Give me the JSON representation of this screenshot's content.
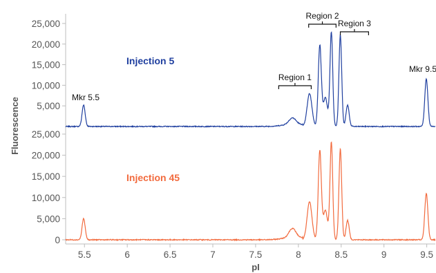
{
  "chart_data": {
    "type": "line",
    "xlabel": "pI",
    "ylabel": "Fluorescence",
    "xlim": [
      5.28,
      9.6
    ],
    "x_ticks": [
      "5.5",
      "6",
      "6.5",
      "7",
      "7.5",
      "8",
      "8.5",
      "9",
      "9.5"
    ],
    "y_ticks": [
      "0",
      "5,000",
      "10,000",
      "15,000",
      "20,000",
      "25,000"
    ],
    "panels": [
      {
        "name": "Injection 5",
        "color": "#1f3f9f",
        "ylim": [
          0,
          26500
        ],
        "baseline": 0,
        "y_tick_values": [
          5000,
          10000,
          15000,
          20000,
          25000
        ],
        "y_tick_labels": [
          "5,000",
          "10,000",
          "15,000",
          "20,000",
          "25,000"
        ],
        "peaks": [
          {
            "x": 5.49,
            "height": 5200,
            "width": 0.018
          },
          {
            "x": 7.93,
            "height": 1500,
            "width": 0.04
          },
          {
            "x": 8.13,
            "height": 8000,
            "width": 0.028
          },
          {
            "x": 8.25,
            "height": 19600,
            "width": 0.018
          },
          {
            "x": 8.315,
            "height": 7000,
            "width": 0.025
          },
          {
            "x": 8.385,
            "height": 22900,
            "width": 0.016
          },
          {
            "x": 8.49,
            "height": 22300,
            "width": 0.016
          },
          {
            "x": 8.575,
            "height": 5200,
            "width": 0.018
          },
          {
            "x": 9.495,
            "height": 11600,
            "width": 0.018
          }
        ],
        "annotations": [
          {
            "text": "Mkr 5.5",
            "x": 5.49
          },
          {
            "text": "Mkr 9.5",
            "x": 9.495
          }
        ],
        "regions": [
          {
            "label": "Region 1",
            "x_start": 7.77,
            "x_end": 8.15
          },
          {
            "label": "Region 2",
            "x_start": 8.12,
            "x_end": 8.44
          },
          {
            "label": "Region 3",
            "x_start": 8.49,
            "x_end": 8.82
          }
        ]
      },
      {
        "name": "Injection 45",
        "color": "#f26a3d",
        "ylim": [
          -500,
          25000
        ],
        "baseline": 0,
        "y_tick_values": [
          0,
          5000,
          10000,
          15000,
          20000,
          25000
        ],
        "y_tick_labels": [
          "0",
          "5,000",
          "10,000",
          "15,000",
          "20,000",
          "25,000"
        ],
        "peaks": [
          {
            "x": 5.49,
            "height": 5000,
            "width": 0.018
          },
          {
            "x": 7.93,
            "height": 2100,
            "width": 0.04
          },
          {
            "x": 8.13,
            "height": 9000,
            "width": 0.028
          },
          {
            "x": 8.25,
            "height": 21000,
            "width": 0.018
          },
          {
            "x": 8.315,
            "height": 7000,
            "width": 0.025
          },
          {
            "x": 8.385,
            "height": 23000,
            "width": 0.016
          },
          {
            "x": 8.49,
            "height": 21500,
            "width": 0.016
          },
          {
            "x": 8.575,
            "height": 4600,
            "width": 0.018
          },
          {
            "x": 9.495,
            "height": 11000,
            "width": 0.018
          }
        ]
      }
    ]
  }
}
